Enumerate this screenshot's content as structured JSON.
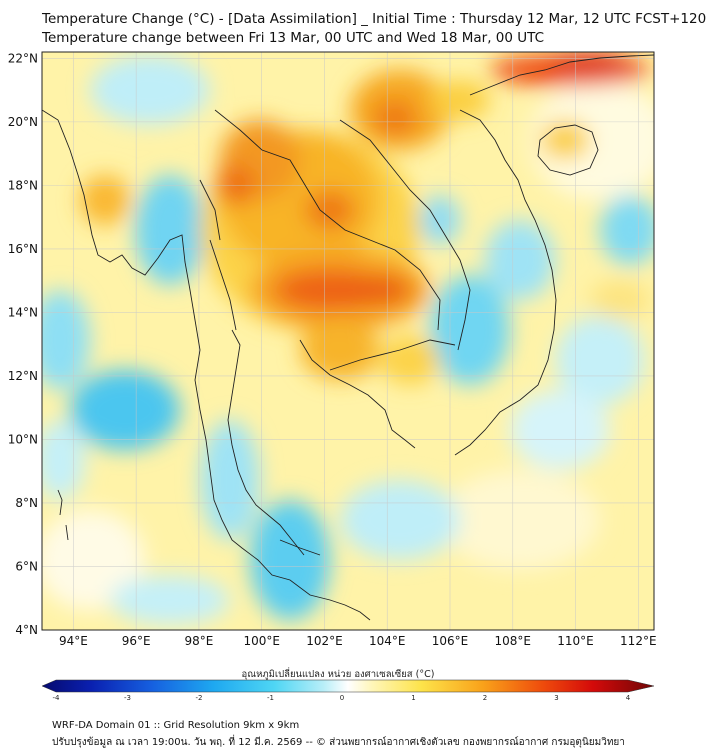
{
  "header": {
    "title_line1": "Temperature Change (°C) - [Data Assimilation] _ Initial Time : Thursday 12 Mar, 12 UTC FCST+120",
    "title_line2": "Temperature change between Fri 13 Mar, 00 UTC and Wed 18 Mar, 00 UTC"
  },
  "map": {
    "lat_labels": [
      "22°N",
      "20°N",
      "18°N",
      "16°N",
      "14°N",
      "12°N",
      "10°N",
      "8°N",
      "6°N",
      "4°N"
    ],
    "lon_labels": [
      "94°E",
      "96°E",
      "98°E",
      "100°E",
      "102°E",
      "104°E",
      "106°E",
      "108°E",
      "110°E",
      "112°E"
    ],
    "extent": {
      "lon_min": 93.0,
      "lon_max": 112.5,
      "lat_min": 4.0,
      "lat_max": 22.2
    }
  },
  "colorbar": {
    "label": "อุณหภูมิเปลี่ยนแปลง หน่วย องศาเซลเซียส (°C)",
    "ticks": [
      "-4",
      "-3",
      "-2",
      "-1",
      "0",
      "1",
      "2",
      "3",
      "4"
    ],
    "min": -4,
    "max": 4
  },
  "footer": {
    "line1": "WRF-DA Domain 01 :: Grid Resolution 9km x 9km",
    "line2": "ปรับปรุงข้อมูล ณ เวลา 19:00น. วัน พฤ. ที่ 12 มี.ค. 2569 -- © ส่วนพยากรณ์อากาศเชิงตัวเลข กองพยากรณ์อากาศ กรมอุตุนิยมวิทยา"
  }
}
